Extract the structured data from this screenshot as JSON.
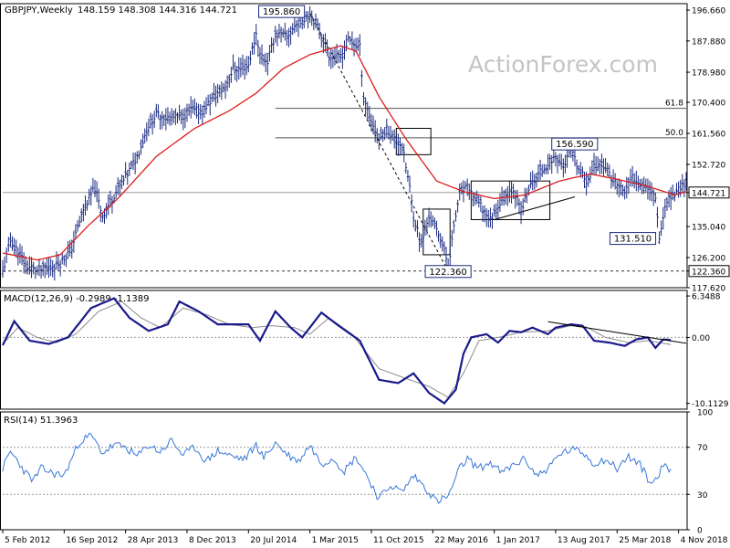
{
  "header": {
    "symbol": "GBPJPY,Weekly",
    "ohlc": "148.159 148.308 144.316 144.721"
  },
  "watermark": "ActionForex.com",
  "colors": {
    "price": "#1a2a80",
    "ma": "#dd1c1c",
    "macd": "#1a1a8c",
    "signal": "#8c8c8c",
    "rsi": "#3a78d8",
    "grid": "#9a9a9a",
    "text": "#000000",
    "label_border": "#1a2a80"
  },
  "chart_data": [
    {
      "type": "line",
      "name": "price",
      "ylim": [
        117.62,
        198.5
      ],
      "xlim": [
        0,
        356
      ],
      "yticks": [
        "196.660",
        "187.880",
        "178.980",
        "170.400",
        "161.560",
        "152.720",
        "144.721",
        "135.040",
        "126.200",
        "122.360",
        "117.620"
      ],
      "ytick_values": [
        196.66,
        187.88,
        178.98,
        170.4,
        161.56,
        152.72,
        144.721,
        135.04,
        126.2,
        122.36,
        117.62
      ],
      "highlighted_ticks": [
        "144.721",
        "122.360"
      ],
      "pivots": [
        [
          0,
          122.0
        ],
        [
          4,
          131.0
        ],
        [
          8,
          128.0
        ],
        [
          12,
          124.0
        ],
        [
          18,
          122.4
        ],
        [
          24,
          123.5
        ],
        [
          30,
          124.5
        ],
        [
          36,
          129.0
        ],
        [
          42,
          140.0
        ],
        [
          48,
          146.0
        ],
        [
          52,
          138.0
        ],
        [
          58,
          144.0
        ],
        [
          64,
          149.0
        ],
        [
          70,
          155.0
        ],
        [
          76,
          164.0
        ],
        [
          80,
          167.0
        ],
        [
          86,
          166.0
        ],
        [
          92,
          166.0
        ],
        [
          98,
          168.0
        ],
        [
          104,
          168.0
        ],
        [
          110,
          172.0
        ],
        [
          116,
          175.0
        ],
        [
          120,
          180.0
        ],
        [
          124,
          180.0
        ],
        [
          128,
          181.0
        ],
        [
          132,
          190.0
        ],
        [
          134,
          184.0
        ],
        [
          138,
          182.0
        ],
        [
          142,
          190.0
        ],
        [
          148,
          189.0
        ],
        [
          152,
          192.0
        ],
        [
          156,
          194.0
        ],
        [
          160,
          195.8
        ],
        [
          164,
          192.0
        ],
        [
          170,
          184.0
        ],
        [
          176,
          183.0
        ],
        [
          180,
          188.0
        ],
        [
          186,
          186.0
        ],
        [
          188,
          172.0
        ],
        [
          192,
          165.0
        ],
        [
          196,
          160.0
        ],
        [
          200,
          163.0
        ],
        [
          204,
          160.0
        ],
        [
          208,
          158.0
        ],
        [
          212,
          146.0
        ],
        [
          214,
          138.0
        ],
        [
          218,
          130.0
        ],
        [
          222,
          138.0
        ],
        [
          228,
          132.0
        ],
        [
          232,
          124.0
        ],
        [
          236,
          138.0
        ],
        [
          238,
          145.0
        ],
        [
          242,
          146.0
        ],
        [
          246,
          143.0
        ],
        [
          250,
          140.0
        ],
        [
          254,
          137.0
        ],
        [
          258,
          141.0
        ],
        [
          262,
          144.0
        ],
        [
          266,
          146.0
        ],
        [
          270,
          139.0
        ],
        [
          274,
          146.0
        ],
        [
          278,
          149.0
        ],
        [
          282,
          152.0
        ],
        [
          288,
          155.0
        ],
        [
          292,
          152.0
        ],
        [
          296,
          156.59
        ],
        [
          300,
          151.0
        ],
        [
          304,
          148.0
        ],
        [
          308,
          152.0
        ],
        [
          312,
          153.0
        ],
        [
          316,
          150.0
        ],
        [
          320,
          147.0
        ],
        [
          324,
          145.0
        ],
        [
          328,
          149.0
        ],
        [
          332,
          148.0
        ],
        [
          336,
          146.0
        ],
        [
          340,
          144.0
        ],
        [
          342,
          132.0
        ],
        [
          346,
          143.0
        ],
        [
          350,
          144.0
        ],
        [
          356,
          148.0
        ]
      ],
      "ma_pivots": [
        [
          0,
          127.5
        ],
        [
          18,
          125.5
        ],
        [
          30,
          127.0
        ],
        [
          44,
          135.0
        ],
        [
          60,
          143.0
        ],
        [
          80,
          155.0
        ],
        [
          100,
          163.0
        ],
        [
          118,
          168.0
        ],
        [
          132,
          173.0
        ],
        [
          146,
          180.0
        ],
        [
          160,
          184.0
        ],
        [
          176,
          186.5
        ],
        [
          184,
          185.0
        ],
        [
          196,
          172.0
        ],
        [
          210,
          160.0
        ],
        [
          226,
          148.0
        ],
        [
          240,
          145.0
        ],
        [
          256,
          143.0
        ],
        [
          272,
          144.0
        ],
        [
          290,
          148.0
        ],
        [
          306,
          150.0
        ],
        [
          320,
          148.5
        ],
        [
          336,
          146.5
        ],
        [
          350,
          144.0
        ],
        [
          356,
          145.0
        ]
      ],
      "levels": [
        {
          "label": "61.8",
          "value": 168.7
        },
        {
          "label": "50.0",
          "value": 160.3
        }
      ],
      "annotations": [
        {
          "label": "195.860",
          "value": 195.86,
          "x": 160
        },
        {
          "label": "156.590",
          "value": 156.59,
          "x": 296
        },
        {
          "label": "131.510",
          "value": 131.51,
          "x": 342
        },
        {
          "label": "122.360",
          "value": 122.36,
          "x": 232
        }
      ],
      "trendlines": [
        {
          "dashed": true,
          "from": [
            160,
            195.86
          ],
          "to": [
            232,
            122.36
          ]
        },
        {
          "dashed": false,
          "from": [
            256,
            137.0
          ],
          "to": [
            298,
            143.5
          ]
        }
      ],
      "boxes": [
        {
          "x0": 205,
          "x1": 223,
          "y0": 163.0,
          "y1": 155.5
        },
        {
          "x0": 219,
          "x1": 233,
          "y0": 140.0,
          "y1": 127.0
        },
        {
          "x0": 244,
          "x1": 285,
          "y0": 148.0,
          "y1": 137.0
        }
      ]
    },
    {
      "type": "line",
      "name": "MACD(12,26,9)",
      "legend": "MACD(12,26,9) -0.2989 -1.1389",
      "ylim": [
        -11.0,
        7.2
      ],
      "yticks": [
        "6.3488",
        "0.00",
        "-10.1129"
      ],
      "ytick_values": [
        6.3488,
        0.0,
        -10.1129
      ],
      "macd_pivots": [
        [
          0,
          -1.2
        ],
        [
          6,
          2.5
        ],
        [
          14,
          -0.5
        ],
        [
          24,
          -1.0
        ],
        [
          34,
          0.0
        ],
        [
          46,
          4.5
        ],
        [
          58,
          6.0
        ],
        [
          66,
          3.0
        ],
        [
          76,
          1.0
        ],
        [
          86,
          2.0
        ],
        [
          92,
          5.5
        ],
        [
          102,
          4.0
        ],
        [
          112,
          2.0
        ],
        [
          118,
          2.0
        ],
        [
          128,
          2.0
        ],
        [
          134,
          -0.5
        ],
        [
          142,
          4.0
        ],
        [
          150,
          1.5
        ],
        [
          156,
          0.0
        ],
        [
          166,
          3.8
        ],
        [
          174,
          2.0
        ],
        [
          186,
          -0.5
        ],
        [
          196,
          -6.5
        ],
        [
          206,
          -7.0
        ],
        [
          214,
          -5.5
        ],
        [
          222,
          -8.5
        ],
        [
          230,
          -10.1
        ],
        [
          236,
          -8.0
        ],
        [
          240,
          -2.5
        ],
        [
          244,
          0.0
        ],
        [
          252,
          0.5
        ],
        [
          258,
          -0.8
        ],
        [
          264,
          1.0
        ],
        [
          270,
          0.8
        ],
        [
          276,
          1.5
        ],
        [
          284,
          0.5
        ],
        [
          288,
          1.5
        ],
        [
          296,
          2.0
        ],
        [
          302,
          1.8
        ],
        [
          308,
          -0.5
        ],
        [
          316,
          -0.8
        ],
        [
          324,
          -1.3
        ],
        [
          330,
          -0.3
        ],
        [
          336,
          0.0
        ],
        [
          340,
          -1.6
        ],
        [
          344,
          -0.3
        ],
        [
          348,
          -0.4
        ]
      ],
      "signal_pivots": [
        [
          0,
          -1.0
        ],
        [
          8,
          1.5
        ],
        [
          18,
          0.0
        ],
        [
          28,
          -0.8
        ],
        [
          38,
          0.5
        ],
        [
          50,
          4.0
        ],
        [
          62,
          5.5
        ],
        [
          72,
          3.0
        ],
        [
          82,
          1.5
        ],
        [
          94,
          4.5
        ],
        [
          106,
          3.5
        ],
        [
          118,
          2.0
        ],
        [
          130,
          1.5
        ],
        [
          140,
          1.8
        ],
        [
          152,
          1.5
        ],
        [
          160,
          0.5
        ],
        [
          170,
          3.0
        ],
        [
          182,
          0.5
        ],
        [
          196,
          -4.8
        ],
        [
          212,
          -6.5
        ],
        [
          222,
          -7.5
        ],
        [
          232,
          -9.2
        ],
        [
          240,
          -5.5
        ],
        [
          248,
          -0.5
        ],
        [
          258,
          0.0
        ],
        [
          270,
          0.8
        ],
        [
          284,
          1.0
        ],
        [
          296,
          1.8
        ],
        [
          304,
          1.6
        ],
        [
          314,
          0.0
        ],
        [
          326,
          -0.8
        ],
        [
          336,
          -0.5
        ],
        [
          348,
          -1.1
        ]
      ],
      "trendline": {
        "from": [
          284,
          2.4
        ],
        "to": [
          356,
          -0.9
        ]
      }
    },
    {
      "type": "line",
      "name": "RSI(14)",
      "legend": "RSI(14) 51.3963",
      "ylim": [
        0,
        100
      ],
      "yticks": [
        "100",
        "70",
        "30",
        "0"
      ],
      "ytick_values": [
        100,
        70,
        30,
        0
      ],
      "rsi_pivots": [
        [
          0,
          52
        ],
        [
          4,
          66
        ],
        [
          8,
          58
        ],
        [
          12,
          48
        ],
        [
          16,
          42
        ],
        [
          20,
          52
        ],
        [
          26,
          48
        ],
        [
          32,
          46
        ],
        [
          40,
          75
        ],
        [
          46,
          80
        ],
        [
          52,
          65
        ],
        [
          58,
          72
        ],
        [
          64,
          70
        ],
        [
          70,
          62
        ],
        [
          76,
          72
        ],
        [
          82,
          66
        ],
        [
          88,
          76
        ],
        [
          94,
          63
        ],
        [
          100,
          70
        ],
        [
          106,
          58
        ],
        [
          112,
          67
        ],
        [
          120,
          62
        ],
        [
          126,
          60
        ],
        [
          132,
          72
        ],
        [
          136,
          61
        ],
        [
          142,
          74
        ],
        [
          148,
          64
        ],
        [
          154,
          58
        ],
        [
          160,
          72
        ],
        [
          166,
          56
        ],
        [
          172,
          61
        ],
        [
          178,
          50
        ],
        [
          184,
          62
        ],
        [
          190,
          45
        ],
        [
          196,
          26
        ],
        [
          202,
          38
        ],
        [
          208,
          32
        ],
        [
          214,
          46
        ],
        [
          220,
          36
        ],
        [
          226,
          24
        ],
        [
          232,
          28
        ],
        [
          238,
          52
        ],
        [
          242,
          60
        ],
        [
          248,
          52
        ],
        [
          254,
          57
        ],
        [
          260,
          48
        ],
        [
          266,
          55
        ],
        [
          272,
          60
        ],
        [
          278,
          46
        ],
        [
          284,
          52
        ],
        [
          290,
          64
        ],
        [
          296,
          68
        ],
        [
          302,
          66
        ],
        [
          308,
          56
        ],
        [
          314,
          60
        ],
        [
          320,
          52
        ],
        [
          326,
          62
        ],
        [
          332,
          55
        ],
        [
          338,
          38
        ],
        [
          344,
          54
        ],
        [
          348,
          51
        ]
      ]
    }
  ],
  "x_axis": {
    "labels": [
      {
        "text": "5 Feb 2012",
        "week": 0
      },
      {
        "text": "16 Sep 2012",
        "week": 32
      },
      {
        "text": "28 Apr 2013",
        "week": 64
      },
      {
        "text": "8 Dec 2013",
        "week": 96
      },
      {
        "text": "20 Jul 2014",
        "week": 128
      },
      {
        "text": "1 Mar 2015",
        "week": 160
      },
      {
        "text": "11 Oct 2015",
        "week": 192
      },
      {
        "text": "22 May 2016",
        "week": 224
      },
      {
        "text": "1 Jan 2017",
        "week": 256
      },
      {
        "text": "13 Aug 2017",
        "week": 288
      },
      {
        "text": "25 Mar 2018",
        "week": 320
      },
      {
        "text": "4 Nov 2018",
        "week": 352
      }
    ]
  }
}
